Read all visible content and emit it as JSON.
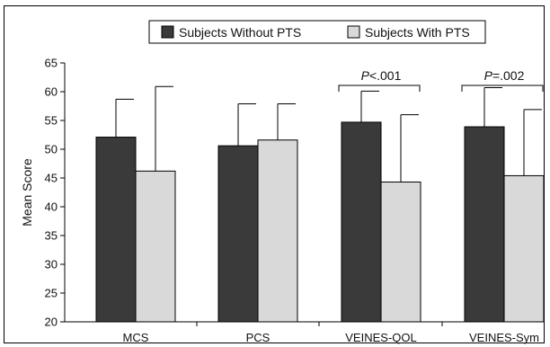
{
  "chart_data": {
    "type": "bar",
    "categories": [
      "MCS",
      "PCS",
      "VEINES-QOL",
      "VEINES-Sym"
    ],
    "series": [
      {
        "name": "Subjects Without PTS",
        "color": "#3a3a3a",
        "values": [
          52.1,
          50.6,
          54.7,
          53.9
        ],
        "error_upper": [
          58.7,
          57.9,
          60.1,
          60.7
        ]
      },
      {
        "name": "Subjects With PTS",
        "color": "#d9d9d9",
        "values": [
          46.2,
          51.6,
          44.3,
          45.4
        ],
        "error_upper": [
          60.9,
          57.9,
          56.0,
          56.9
        ]
      }
    ],
    "ylabel": "Mean Score",
    "xlabel": "",
    "ylim": [
      20,
      65
    ],
    "yticks": [
      20,
      25,
      30,
      35,
      40,
      45,
      50,
      55,
      60,
      65
    ],
    "annotations": [
      {
        "category_index": 2,
        "prefix": "P",
        "text": "<.001"
      },
      {
        "category_index": 3,
        "prefix": "P",
        "text": "=.002"
      }
    ],
    "legend_position": "top"
  }
}
